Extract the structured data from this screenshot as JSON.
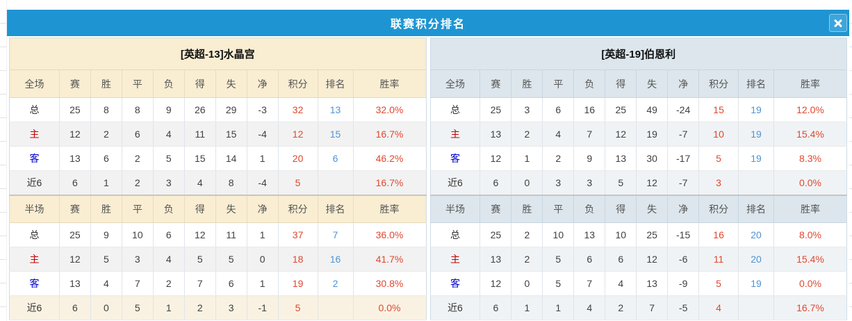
{
  "dialog": {
    "title": "联赛积分排名"
  },
  "colors": {
    "titlebar_blue": "#1E95D2",
    "left_header_cream": "#F9EDD2",
    "right_header_blue": "#DCE6EC",
    "value_red": "#E1472E",
    "rank_blue": "#4E94D4",
    "home_label_red": "#C00000",
    "away_label_blue": "#0000CC"
  },
  "columns": {
    "full_first": "全场",
    "half_first": "半场",
    "stats": [
      "赛",
      "胜",
      "平",
      "负",
      "得",
      "失",
      "净"
    ],
    "points": "积分",
    "rank": "排名",
    "rate": "胜率"
  },
  "teams": [
    {
      "name": "[英超-13]水晶宫",
      "full": [
        {
          "label": "总",
          "stats": [
            25,
            8,
            8,
            9,
            26,
            29,
            -3
          ],
          "points": 32,
          "rank": 13,
          "rate": "32.0%"
        },
        {
          "label": "主",
          "stats": [
            12,
            2,
            6,
            4,
            11,
            15,
            -4
          ],
          "points": 12,
          "rank": 15,
          "rate": "16.7%"
        },
        {
          "label": "客",
          "stats": [
            13,
            6,
            2,
            5,
            15,
            14,
            1
          ],
          "points": 20,
          "rank": 6,
          "rate": "46.2%"
        },
        {
          "label": "近6",
          "stats": [
            6,
            1,
            2,
            3,
            4,
            8,
            -4
          ],
          "points": 5,
          "rank": "",
          "rate": "16.7%"
        }
      ],
      "half": [
        {
          "label": "总",
          "stats": [
            25,
            9,
            10,
            6,
            12,
            11,
            1
          ],
          "points": 37,
          "rank": 7,
          "rate": "36.0%"
        },
        {
          "label": "主",
          "stats": [
            12,
            5,
            3,
            4,
            5,
            5,
            0
          ],
          "points": 18,
          "rank": 16,
          "rate": "41.7%"
        },
        {
          "label": "客",
          "stats": [
            13,
            4,
            7,
            2,
            7,
            6,
            1
          ],
          "points": 19,
          "rank": 2,
          "rate": "30.8%"
        },
        {
          "label": "近6",
          "stats": [
            6,
            0,
            5,
            1,
            2,
            3,
            -1
          ],
          "points": 5,
          "rank": "",
          "rate": "0.0%"
        }
      ]
    },
    {
      "name": "[英超-19]伯恩利",
      "full": [
        {
          "label": "总",
          "stats": [
            25,
            3,
            6,
            16,
            25,
            49,
            -24
          ],
          "points": 15,
          "rank": 19,
          "rate": "12.0%"
        },
        {
          "label": "主",
          "stats": [
            13,
            2,
            4,
            7,
            12,
            19,
            -7
          ],
          "points": 10,
          "rank": 19,
          "rate": "15.4%"
        },
        {
          "label": "客",
          "stats": [
            12,
            1,
            2,
            9,
            13,
            30,
            -17
          ],
          "points": 5,
          "rank": 19,
          "rate": "8.3%"
        },
        {
          "label": "近6",
          "stats": [
            6,
            0,
            3,
            3,
            5,
            12,
            -7
          ],
          "points": 3,
          "rank": "",
          "rate": "0.0%"
        }
      ],
      "half": [
        {
          "label": "总",
          "stats": [
            25,
            2,
            10,
            13,
            10,
            25,
            -15
          ],
          "points": 16,
          "rank": 20,
          "rate": "8.0%"
        },
        {
          "label": "主",
          "stats": [
            13,
            2,
            5,
            6,
            6,
            12,
            -6
          ],
          "points": 11,
          "rank": 20,
          "rate": "15.4%"
        },
        {
          "label": "客",
          "stats": [
            12,
            0,
            5,
            7,
            4,
            13,
            -9
          ],
          "points": 5,
          "rank": 19,
          "rate": "0.0%"
        },
        {
          "label": "近6",
          "stats": [
            6,
            1,
            1,
            4,
            2,
            7,
            -5
          ],
          "points": 4,
          "rank": "",
          "rate": "16.7%"
        }
      ]
    }
  ]
}
